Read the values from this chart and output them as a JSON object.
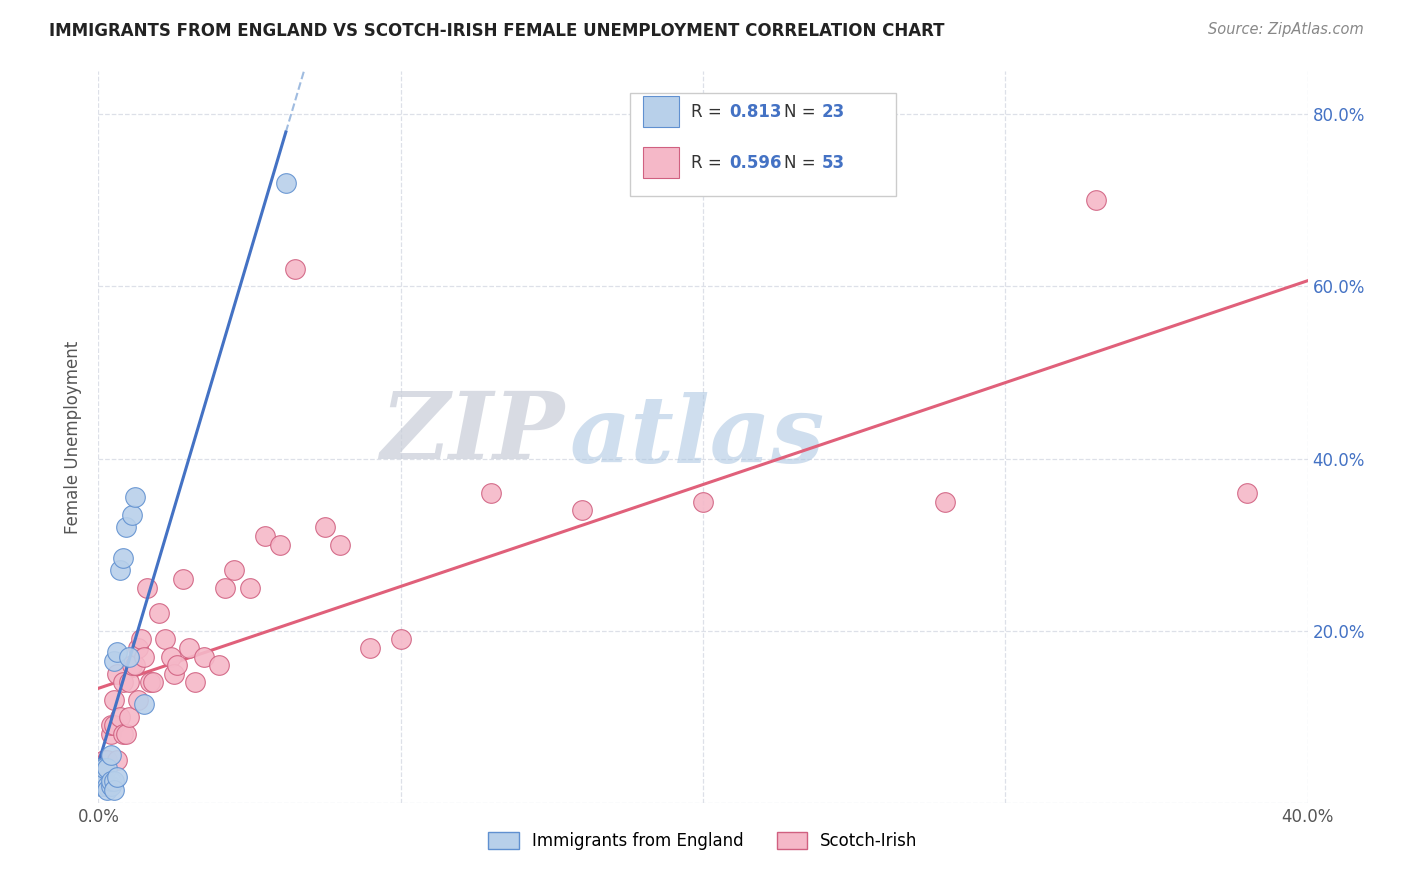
{
  "title": "IMMIGRANTS FROM ENGLAND VS SCOTCH-IRISH FEMALE UNEMPLOYMENT CORRELATION CHART",
  "source": "Source: ZipAtlas.com",
  "ylabel": "Female Unemployment",
  "xlim": [
    0.0,
    0.4
  ],
  "ylim": [
    0.0,
    0.85
  ],
  "color_england": "#b8d0ea",
  "color_england_edge": "#6090d0",
  "color_england_line": "#4472c4",
  "color_england_dash": "#a0bce0",
  "color_scotch": "#f5b8c8",
  "color_scotch_edge": "#d06080",
  "color_scotch_line": "#e0607a",
  "watermark_zip": "#d0d8e8",
  "watermark_atlas": "#b8cce8",
  "background_color": "#ffffff",
  "grid_color": "#dde0e8",
  "england_x": [
    0.001,
    0.001,
    0.002,
    0.002,
    0.003,
    0.003,
    0.003,
    0.004,
    0.004,
    0.004,
    0.005,
    0.005,
    0.005,
    0.006,
    0.006,
    0.007,
    0.008,
    0.009,
    0.01,
    0.011,
    0.012,
    0.015,
    0.062
  ],
  "england_y": [
    0.02,
    0.04,
    0.025,
    0.04,
    0.02,
    0.015,
    0.04,
    0.02,
    0.025,
    0.055,
    0.025,
    0.015,
    0.165,
    0.03,
    0.175,
    0.27,
    0.285,
    0.32,
    0.17,
    0.335,
    0.355,
    0.115,
    0.72
  ],
  "scotch_x": [
    0.001,
    0.001,
    0.002,
    0.002,
    0.003,
    0.003,
    0.004,
    0.004,
    0.005,
    0.005,
    0.006,
    0.006,
    0.007,
    0.008,
    0.008,
    0.009,
    0.01,
    0.01,
    0.011,
    0.012,
    0.013,
    0.013,
    0.014,
    0.015,
    0.016,
    0.017,
    0.018,
    0.02,
    0.022,
    0.024,
    0.025,
    0.026,
    0.028,
    0.03,
    0.032,
    0.035,
    0.04,
    0.042,
    0.045,
    0.05,
    0.055,
    0.06,
    0.065,
    0.075,
    0.08,
    0.09,
    0.1,
    0.13,
    0.16,
    0.2,
    0.28,
    0.33,
    0.38
  ],
  "scotch_y": [
    0.025,
    0.04,
    0.05,
    0.02,
    0.05,
    0.02,
    0.08,
    0.09,
    0.09,
    0.12,
    0.05,
    0.15,
    0.1,
    0.14,
    0.08,
    0.08,
    0.14,
    0.1,
    0.16,
    0.16,
    0.12,
    0.18,
    0.19,
    0.17,
    0.25,
    0.14,
    0.14,
    0.22,
    0.19,
    0.17,
    0.15,
    0.16,
    0.26,
    0.18,
    0.14,
    0.17,
    0.16,
    0.25,
    0.27,
    0.25,
    0.31,
    0.3,
    0.62,
    0.32,
    0.3,
    0.18,
    0.19,
    0.36,
    0.34,
    0.35,
    0.35,
    0.7,
    0.36
  ],
  "legend_eng_r": "0.813",
  "legend_eng_n": "23",
  "legend_sco_r": "0.596",
  "legend_sco_n": "53"
}
